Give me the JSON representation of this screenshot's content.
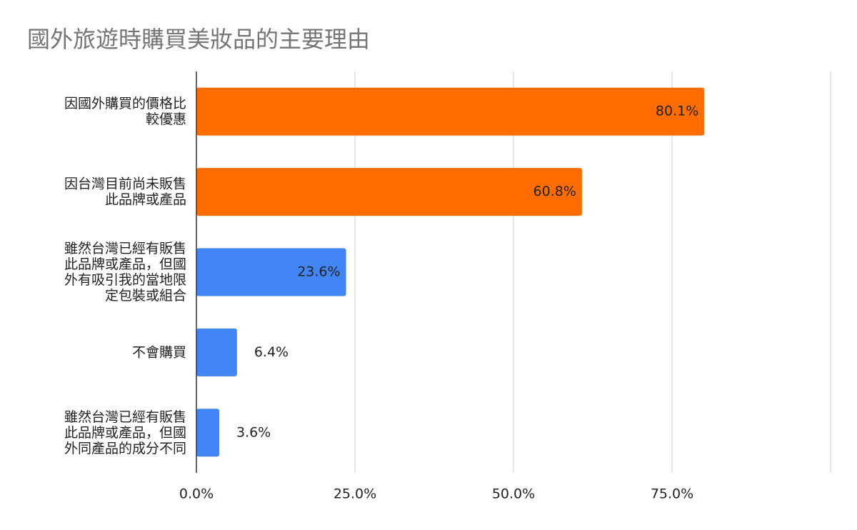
{
  "chart_data": {
    "type": "bar",
    "orientation": "horizontal",
    "title": "國外旅遊時購買美妝品的主要理由",
    "categories": [
      "因國外購買的價格比較優惠",
      "因台灣目前尚未販售此品牌或產品",
      "雖然台灣已經有販售此品牌或產品，但國外有吸引我的當地限定包裝或組合",
      "不會購買",
      "雖然台灣已經有販售此品牌或產品，但國外同產品的成分不同"
    ],
    "values": [
      80.1,
      60.8,
      23.6,
      6.4,
      3.6
    ],
    "value_labels": [
      "80.1%",
      "60.8%",
      "23.6%",
      "6.4%",
      "3.6%"
    ],
    "colors": [
      "#ff6d01",
      "#ff6d01",
      "#4285f4",
      "#4285f4",
      "#4285f4"
    ],
    "xlim": [
      0,
      100
    ],
    "xticks": [
      {
        "value": 0,
        "label": "0.0%"
      },
      {
        "value": 25,
        "label": "25.0%"
      },
      {
        "value": 50,
        "label": "50.0%"
      },
      {
        "value": 75,
        "label": "75.0%"
      }
    ],
    "grid": true
  }
}
